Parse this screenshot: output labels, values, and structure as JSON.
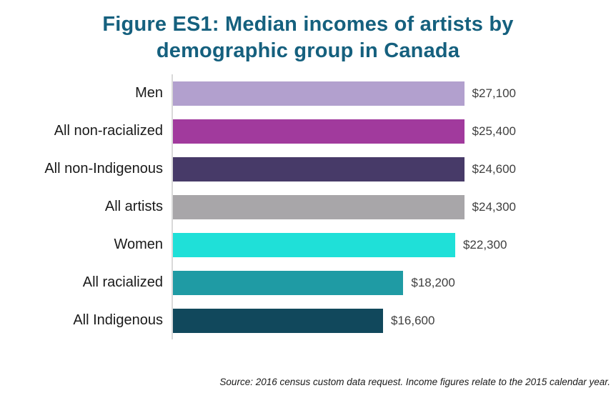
{
  "title": "Figure ES1: Median incomes of artists by demographic group in Canada",
  "source_note": "Source: 2016 census custom data request. Income figures relate to the 2015 calendar year.",
  "colors": {
    "title": "#15607e",
    "axis_line": "#d9d9d9",
    "value_label": "#3f3f3f"
  },
  "chart_data": {
    "type": "bar",
    "orientation": "horizontal",
    "title": "Figure ES1: Median incomes of artists by demographic group in Canada",
    "xlabel": "",
    "ylabel": "",
    "xlim": [
      0,
      27100
    ],
    "grid": false,
    "legend": false,
    "categories": [
      "Men",
      "All non-racialized",
      "All non-Indigenous",
      "All artists",
      "Women",
      "All racialized",
      "All Indigenous"
    ],
    "values": [
      27100,
      25400,
      24600,
      24300,
      22300,
      18200,
      16600
    ],
    "value_labels": [
      "$27,100",
      "$25,400",
      "$24,600",
      "$24,300",
      "$22,300",
      "$18,200",
      "$16,600"
    ],
    "bar_colors": [
      "#b2a0ce",
      "#a13a9d",
      "#473a68",
      "#a8a6a9",
      "#1fe0d8",
      "#1f9ba4",
      "#11485c"
    ]
  }
}
